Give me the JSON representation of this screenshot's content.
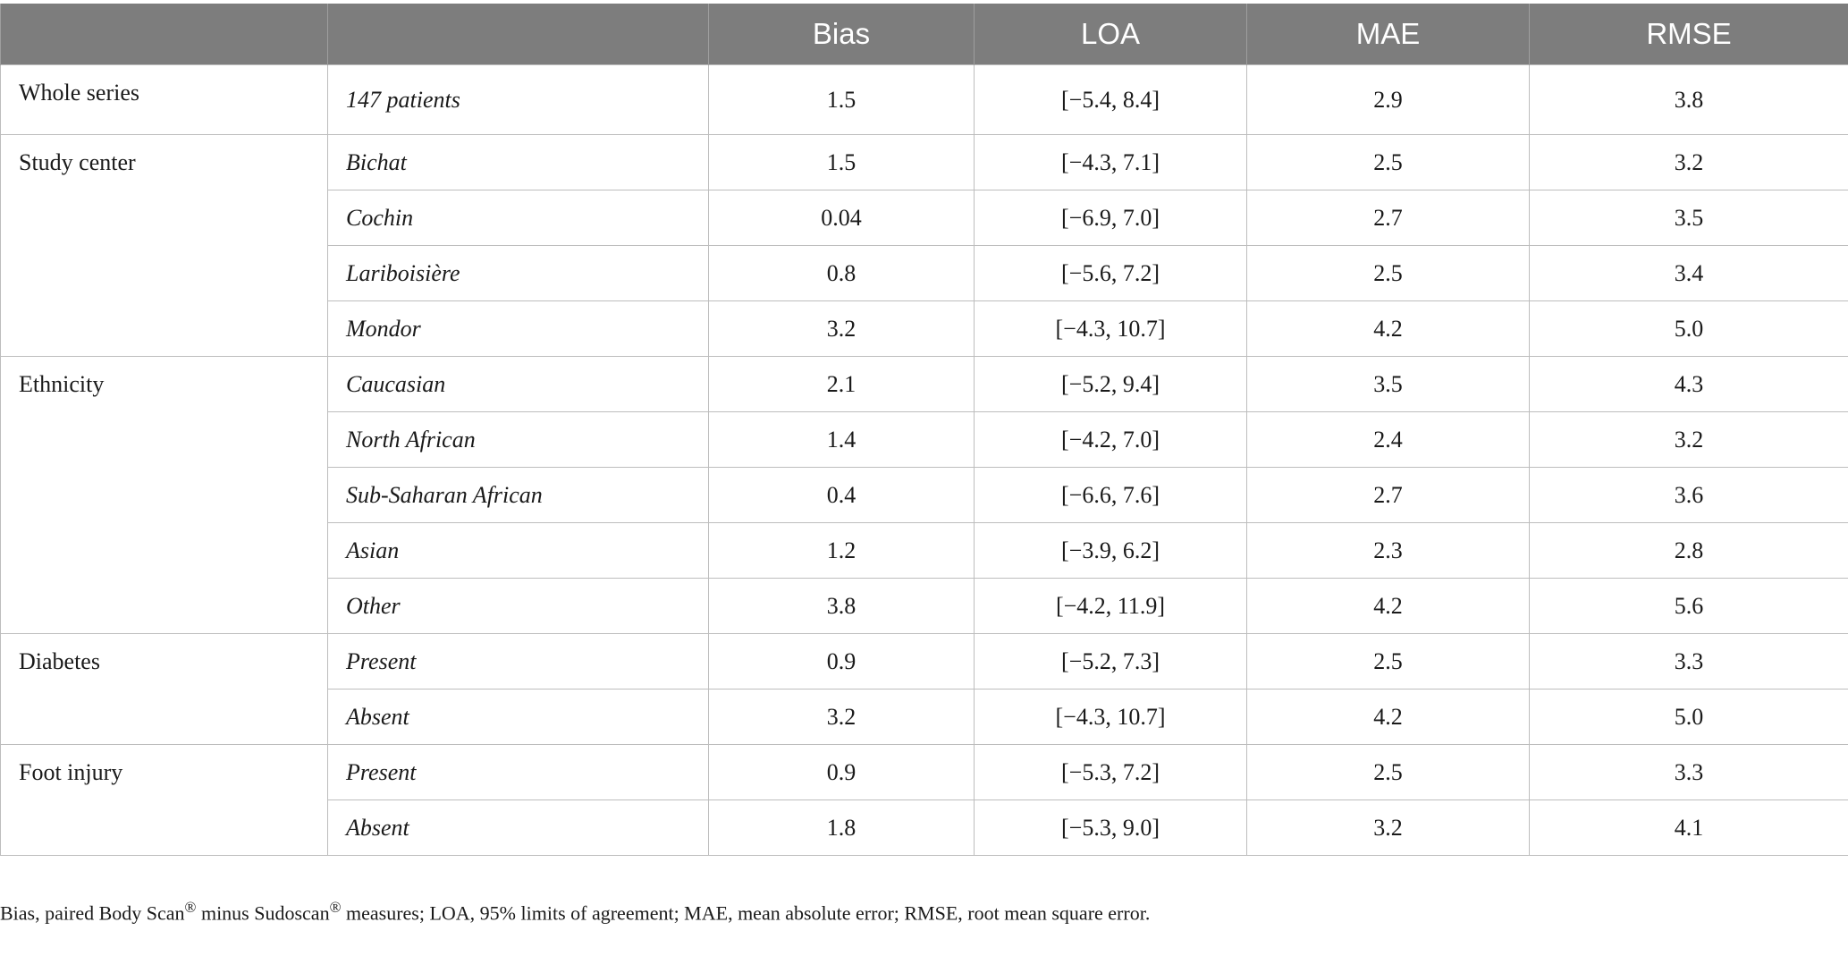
{
  "table": {
    "headers": [
      "",
      "",
      "Bias",
      "LOA",
      "MAE",
      "RMSE"
    ],
    "groups": [
      {
        "label": "Whole series",
        "rows": [
          {
            "sub": "147 patients",
            "bias": "1.5",
            "loa": "[−5.4, 8.4]",
            "mae": "2.9",
            "rmse": "3.8"
          }
        ]
      },
      {
        "label": "Study center",
        "rows": [
          {
            "sub": "Bichat",
            "bias": "1.5",
            "loa": "[−4.3, 7.1]",
            "mae": "2.5",
            "rmse": "3.2"
          },
          {
            "sub": "Cochin",
            "bias": "0.04",
            "loa": "[−6.9, 7.0]",
            "mae": "2.7",
            "rmse": "3.5"
          },
          {
            "sub": "Lariboisière",
            "bias": "0.8",
            "loa": "[−5.6, 7.2]",
            "mae": "2.5",
            "rmse": "3.4"
          },
          {
            "sub": "Mondor",
            "bias": "3.2",
            "loa": "[−4.3, 10.7]",
            "mae": "4.2",
            "rmse": "5.0"
          }
        ]
      },
      {
        "label": "Ethnicity",
        "rows": [
          {
            "sub": "Caucasian",
            "bias": "2.1",
            "loa": "[−5.2, 9.4]",
            "mae": "3.5",
            "rmse": "4.3"
          },
          {
            "sub": "North African",
            "bias": "1.4",
            "loa": "[−4.2, 7.0]",
            "mae": "2.4",
            "rmse": "3.2"
          },
          {
            "sub": "Sub-Saharan African",
            "bias": "0.4",
            "loa": "[−6.6, 7.6]",
            "mae": "2.7",
            "rmse": "3.6"
          },
          {
            "sub": "Asian",
            "bias": "1.2",
            "loa": "[−3.9, 6.2]",
            "mae": "2.3",
            "rmse": "2.8"
          },
          {
            "sub": "Other",
            "bias": "3.8",
            "loa": "[−4.2, 11.9]",
            "mae": "4.2",
            "rmse": "5.6"
          }
        ]
      },
      {
        "label": "Diabetes",
        "rows": [
          {
            "sub": "Present",
            "bias": "0.9",
            "loa": "[−5.2, 7.3]",
            "mae": "2.5",
            "rmse": "3.3"
          },
          {
            "sub": "Absent",
            "bias": "3.2",
            "loa": "[−4.3, 10.7]",
            "mae": "4.2",
            "rmse": "5.0"
          }
        ]
      },
      {
        "label": "Foot injury",
        "rows": [
          {
            "sub": "Present",
            "bias": "0.9",
            "loa": "[−5.3, 7.2]",
            "mae": "2.5",
            "rmse": "3.3"
          },
          {
            "sub": "Absent",
            "bias": "1.8",
            "loa": "[−5.3, 9.0]",
            "mae": "3.2",
            "rmse": "4.1"
          }
        ]
      }
    ]
  },
  "footnote": {
    "part1": "Bias, paired Body Scan",
    "reg1": "®",
    "part2": " minus Sudoscan",
    "reg2": "®",
    "part3": " measures; LOA, 95% limits of agreement; MAE, mean absolute error; RMSE, root mean square error."
  }
}
